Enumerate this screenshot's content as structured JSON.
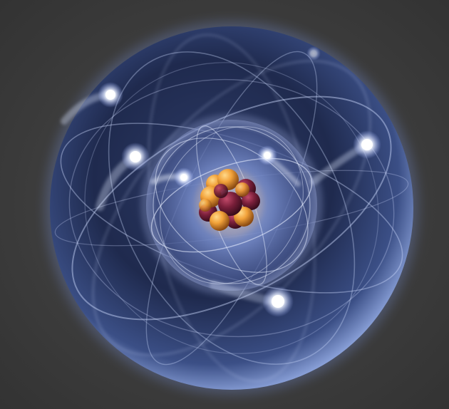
{
  "image": {
    "subject": "",
    "background_color": "#3a3a3a",
    "sphere_color": "#5a6fa8",
    "orbit_color": "#cfdcff",
    "electron_color": "#ffffff",
    "proton_color": "#f2a23a",
    "neutron_color": "#7a1f3a",
    "outer_electron_count": 5,
    "inner_electron_count": 2,
    "nucleon_count": 13
  }
}
